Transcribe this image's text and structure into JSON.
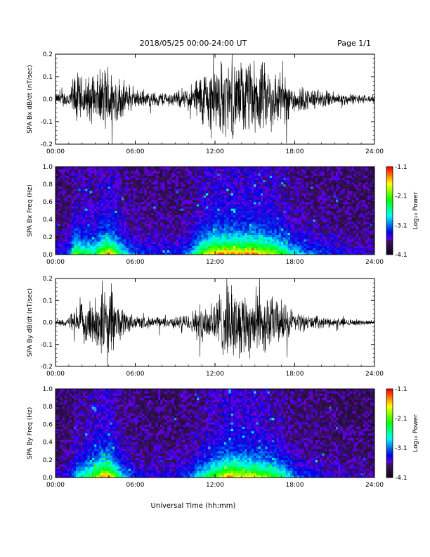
{
  "header": {
    "date_range": "2018/05/25  00:00-24:00 UT",
    "page": "Page 1/1"
  },
  "x_axis_label": "Universal Time (hh:mm)",
  "colors": {
    "trace": "#000000",
    "spectrogram_bg": "#2a0a4a"
  },
  "colorbar_label": "Log₁₀ Power",
  "chart_data": [
    {
      "type": "line",
      "ylabel": "SPA Bx dB/dt (nT/sec)",
      "xlim": [
        0,
        24
      ],
      "ylim": [
        -0.2,
        0.2
      ],
      "x_ticks": [
        "00:00",
        "06:00",
        "12:00",
        "18:00",
        "24:00"
      ],
      "y_ticks": [
        "-0.2",
        "-0.1",
        "0.0",
        "0.1",
        "0.2"
      ],
      "envelope": {
        "hours": [
          0,
          1,
          1.5,
          2,
          3,
          4,
          4.5,
          5,
          6,
          7,
          9,
          10,
          11,
          12,
          13,
          14,
          15,
          16,
          17,
          18,
          19,
          20,
          21,
          22,
          24
        ],
        "amplitude": [
          0.03,
          0.05,
          0.15,
          0.12,
          0.12,
          0.2,
          0.15,
          0.1,
          0.05,
          0.04,
          0.04,
          0.06,
          0.15,
          0.2,
          0.2,
          0.2,
          0.2,
          0.18,
          0.14,
          0.08,
          0.06,
          0.05,
          0.04,
          0.03,
          0.02
        ]
      }
    },
    {
      "type": "heatmap",
      "ylabel": "SPA Bx Freq (Hz)",
      "xlim": [
        0,
        24
      ],
      "ylim": [
        0,
        1
      ],
      "x_ticks": [
        "00:00",
        "06:00",
        "12:00",
        "18:00",
        "24:00"
      ],
      "y_ticks": [
        "0.0",
        "0.2",
        "0.4",
        "0.6",
        "0.8",
        "1.0"
      ],
      "zlim": [
        -4.1,
        -1.1
      ],
      "colorbar_ticks": [
        "-1.1",
        "-2.1",
        "-3.1",
        "-4.1"
      ]
    },
    {
      "type": "line",
      "ylabel": "SPA By dB/dt (nT/sec)",
      "xlim": [
        0,
        24
      ],
      "ylim": [
        -0.2,
        0.2
      ],
      "x_ticks": [
        "00:00",
        "06:00",
        "12:00",
        "18:00",
        "24:00"
      ],
      "y_ticks": [
        "-0.2",
        "-0.1",
        "0.0",
        "0.1",
        "0.2"
      ],
      "envelope": {
        "hours": [
          0,
          1,
          1.5,
          2,
          3,
          3.5,
          4,
          4.5,
          5,
          6,
          7,
          9,
          10,
          11,
          12,
          13,
          14,
          15,
          16,
          17,
          18,
          19,
          20,
          22,
          24
        ],
        "amplitude": [
          0.02,
          0.03,
          0.08,
          0.1,
          0.15,
          0.2,
          0.2,
          0.15,
          0.08,
          0.04,
          0.03,
          0.03,
          0.05,
          0.1,
          0.15,
          0.2,
          0.18,
          0.18,
          0.15,
          0.12,
          0.06,
          0.04,
          0.03,
          0.02,
          0.01
        ]
      }
    },
    {
      "type": "heatmap",
      "ylabel": "SPA By Freq (Hz)",
      "xlim": [
        0,
        24
      ],
      "ylim": [
        0,
        1
      ],
      "x_ticks": [
        "00:00",
        "06:00",
        "12:00",
        "18:00",
        "24:00"
      ],
      "y_ticks": [
        "0.0",
        "0.2",
        "0.4",
        "0.6",
        "0.8",
        "1.0"
      ],
      "zlim": [
        -4.1,
        -1.1
      ],
      "colorbar_ticks": [
        "-1.1",
        "-2.1",
        "-3.1",
        "-4.1"
      ]
    }
  ]
}
